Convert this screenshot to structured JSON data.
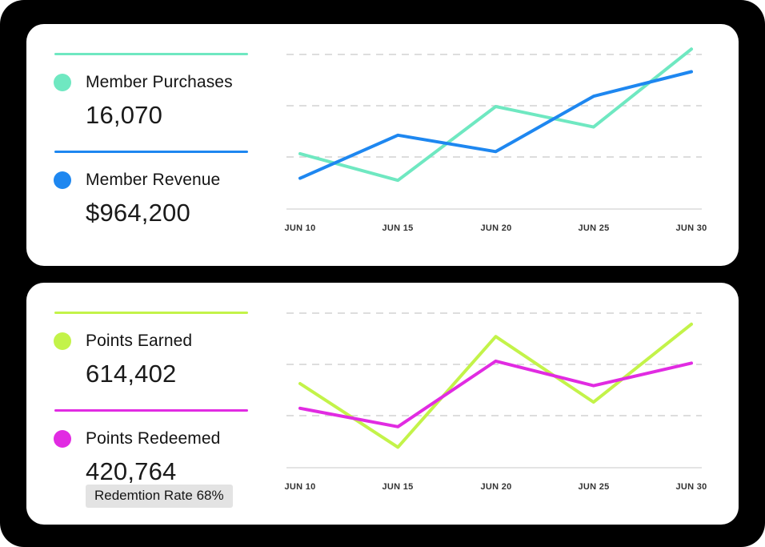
{
  "colors": {
    "page_bg": "#000000",
    "card_bg": "#FFFFFF",
    "grid": "#D2D2D2",
    "axis": "#DBDBDB",
    "badge_bg": "#E3E3E3",
    "teal": "#6FE8C1",
    "blue": "#1E87F0",
    "lime": "#C3F349",
    "magenta": "#E12BE2"
  },
  "x_labels": [
    "JUN 10",
    "JUN 15",
    "JUN 20",
    "JUN 25",
    "JUN 30"
  ],
  "cards": [
    {
      "legend": [
        {
          "label": "Member Purchases",
          "value": "16,070",
          "color": "#6FE8C1"
        },
        {
          "label": "Member Revenue",
          "value": "$964,200",
          "color": "#1E87F0"
        }
      ]
    },
    {
      "legend": [
        {
          "label": "Points Earned",
          "value": "614,402",
          "color": "#C3F349"
        },
        {
          "label": "Points Redeemed",
          "value": "420,764",
          "color": "#E12BE2"
        }
      ],
      "badge": "Redemtion Rate 68%"
    }
  ],
  "chart_data": [
    {
      "type": "line",
      "x": [
        "JUN 10",
        "JUN 15",
        "JUN 20",
        "JUN 25",
        "JUN 30"
      ],
      "series": [
        {
          "name": "Member Purchases",
          "color": "#6FE8C1",
          "total": "16,070",
          "values": [
            27,
            14,
            50,
            40,
            78
          ]
        },
        {
          "name": "Member Revenue",
          "color": "#1E87F0",
          "total": "$964,200",
          "values": [
            15,
            36,
            28,
            55,
            67
          ]
        }
      ],
      "ylim": [
        0,
        100
      ],
      "gridlines": [
        25,
        50,
        75
      ],
      "grid_style": "dashed horizontal, no y tick labels",
      "legend_position": "left"
    },
    {
      "type": "line",
      "x": [
        "JUN 10",
        "JUN 15",
        "JUN 20",
        "JUN 25",
        "JUN 30"
      ],
      "series": [
        {
          "name": "Points Earned",
          "color": "#C3F349",
          "total": "614,402",
          "values": [
            41,
            10,
            64,
            32,
            70
          ]
        },
        {
          "name": "Points Redeemed",
          "color": "#E12BE2",
          "total": "420,764",
          "values": [
            29,
            20,
            52,
            40,
            51
          ]
        }
      ],
      "ylim": [
        0,
        100
      ],
      "gridlines": [
        25,
        50,
        75
      ],
      "grid_style": "dashed horizontal, no y tick labels",
      "legend_position": "left",
      "annotation": "Redemtion Rate 68%"
    }
  ]
}
